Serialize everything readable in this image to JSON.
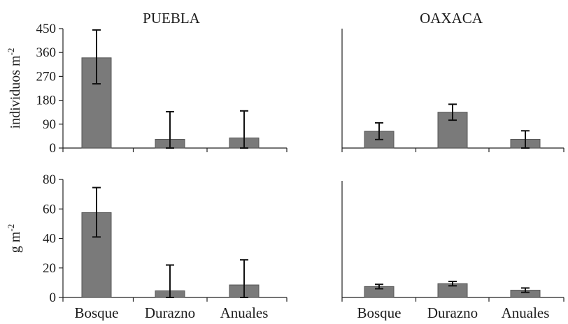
{
  "chart_data": [
    {
      "type": "bar",
      "title": "PUEBLA",
      "ylabel": "individuos  m",
      "ylabel_sup": "-2",
      "ylim": [
        0,
        450
      ],
      "yticks": [
        "450",
        "360",
        "270",
        "180",
        "90",
        "0"
      ],
      "categories": [
        "Bosque",
        "Durazno",
        "Anuales"
      ],
      "values": [
        340,
        33,
        38
      ],
      "error_upper": [
        445,
        137,
        140
      ],
      "error_lower": [
        242,
        0,
        0
      ]
    },
    {
      "type": "bar",
      "title": "OAXACA",
      "ylim": [
        0,
        450
      ],
      "categories": [
        "Bosque",
        "Durazno",
        "Anuales"
      ],
      "values": [
        63,
        135,
        33
      ],
      "error_upper": [
        95,
        165,
        65
      ],
      "error_lower": [
        32,
        105,
        0
      ]
    },
    {
      "type": "bar",
      "ylabel": "g m",
      "ylabel_sup": "-2",
      "ylim": [
        0,
        80
      ],
      "yticks": [
        "80",
        "60",
        "40",
        "20",
        "0"
      ],
      "categories": [
        "Bosque",
        "Durazno",
        "Anuales"
      ],
      "values": [
        57.5,
        4.5,
        8.5
      ],
      "error_upper": [
        74.5,
        22,
        25.5
      ],
      "error_lower": [
        41,
        0,
        0
      ]
    },
    {
      "type": "bar",
      "ylim": [
        0,
        80
      ],
      "categories": [
        "Bosque",
        "Durazno",
        "Anuales"
      ],
      "values": [
        7.5,
        9.5,
        5
      ],
      "error_upper": [
        9,
        11,
        6.5
      ],
      "error_lower": [
        6,
        8,
        3.5
      ]
    }
  ]
}
